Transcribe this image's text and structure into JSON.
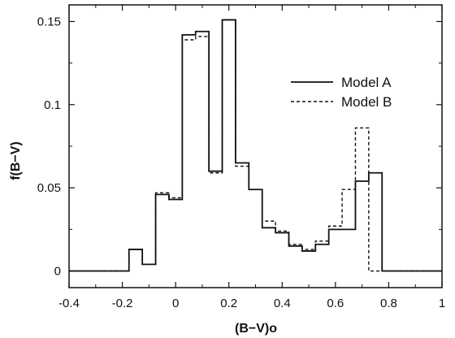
{
  "chart_data": {
    "type": "line",
    "step": true,
    "xlabel": "(B−V)o",
    "ylabel": "f(B−V)",
    "xlim": [
      -0.4,
      1.0
    ],
    "ylim": [
      -0.01,
      0.16
    ],
    "xticks": [
      -0.4,
      -0.2,
      0,
      0.2,
      0.4,
      0.6,
      0.8,
      1.0
    ],
    "xtick_labels": [
      "-0.4",
      "-0.2",
      "0",
      "0.2",
      "0.4",
      "0.6",
      "0.8",
      "1"
    ],
    "yticks": [
      0,
      0.05,
      0.1,
      0.15
    ],
    "ytick_labels": [
      "0",
      "0.05",
      "0.1",
      "0.15"
    ],
    "grid": false,
    "legend_position": "upper-right",
    "bin_edges": [
      -0.4,
      -0.175,
      -0.125,
      -0.075,
      -0.025,
      0.025,
      0.075,
      0.125,
      0.175,
      0.225,
      0.275,
      0.325,
      0.375,
      0.425,
      0.475,
      0.525,
      0.575,
      0.625,
      0.675,
      0.725,
      0.775,
      0.825,
      1.0
    ],
    "series": [
      {
        "name": "Model A",
        "style": "solid",
        "color": "#111111",
        "values": [
          0,
          0.013,
          0.004,
          0.046,
          0.043,
          0.142,
          0.144,
          0.06,
          0.151,
          0.065,
          0.049,
          0.026,
          0.023,
          0.015,
          0.012,
          0.016,
          0.025,
          0.025,
          0.054,
          0.059,
          0.0,
          0
        ]
      },
      {
        "name": "Model B",
        "style": "dashed",
        "color": "#111111",
        "values": [
          0,
          0.013,
          0.004,
          0.047,
          0.044,
          0.139,
          0.141,
          0.059,
          0.151,
          0.063,
          0.049,
          0.03,
          0.024,
          0.016,
          0.013,
          0.018,
          0.027,
          0.049,
          0.086,
          0.0,
          0.0,
          0
        ]
      }
    ]
  }
}
